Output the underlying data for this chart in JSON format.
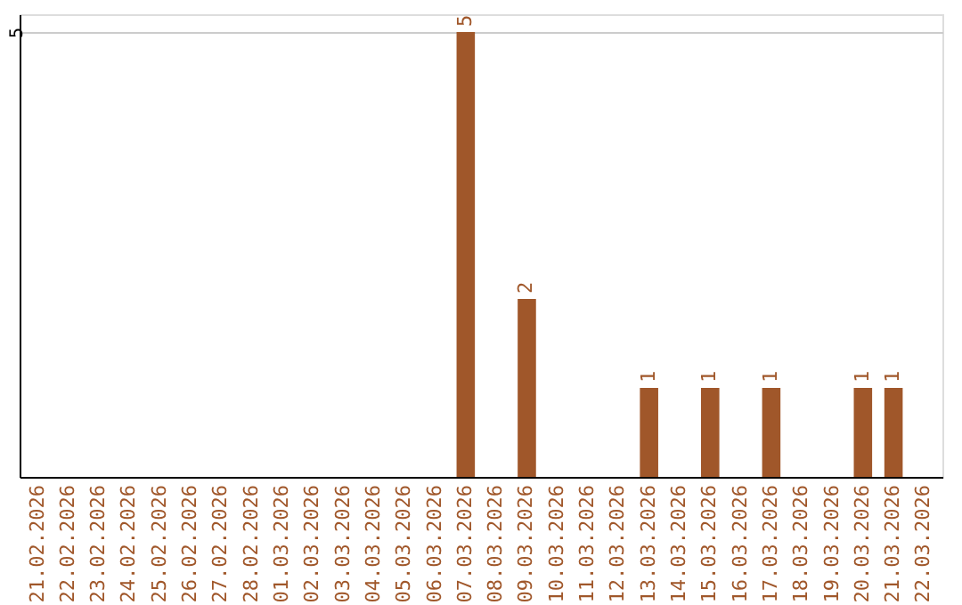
{
  "chart_data": {
    "type": "bar",
    "categories": [
      "21.02.2026",
      "22.02.2026",
      "23.02.2026",
      "24.02.2026",
      "25.02.2026",
      "26.02.2026",
      "27.02.2026",
      "28.02.2026",
      "01.03.2026",
      "02.03.2026",
      "03.03.2026",
      "04.03.2026",
      "05.03.2026",
      "06.03.2026",
      "07.03.2026",
      "08.03.2026",
      "09.03.2026",
      "10.03.2026",
      "11.03.2026",
      "12.03.2026",
      "13.03.2026",
      "14.03.2026",
      "15.03.2026",
      "16.03.2026",
      "17.03.2026",
      "18.03.2026",
      "19.03.2026",
      "20.03.2026",
      "21.03.2026",
      "22.03.2026"
    ],
    "values": [
      null,
      null,
      null,
      null,
      null,
      null,
      null,
      null,
      null,
      null,
      null,
      null,
      null,
      null,
      5,
      null,
      2,
      null,
      null,
      null,
      1,
      null,
      1,
      null,
      1,
      null,
      null,
      1,
      1,
      null
    ],
    "color": "#a0572a",
    "ylim": [
      0,
      5.2
    ],
    "yticks": [
      5
    ],
    "grid": "y",
    "data_labels": true
  }
}
